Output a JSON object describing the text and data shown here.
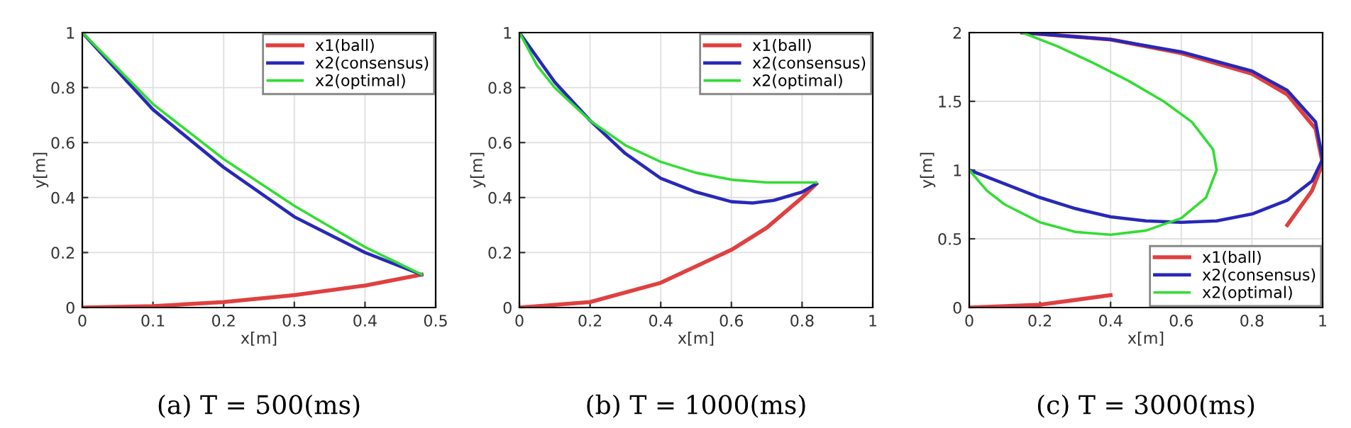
{
  "chart_data": [
    {
      "type": "line",
      "title": "(a) T = 500(ms)",
      "xlabel": "x[m]",
      "ylabel": "y[m]",
      "xlim": [
        0,
        0.5
      ],
      "ylim": [
        0,
        1
      ],
      "xticks": [
        0,
        0.1,
        0.2,
        0.3,
        0.4,
        0.5
      ],
      "yticks": [
        0,
        0.2,
        0.4,
        0.6,
        0.8,
        1
      ],
      "grid": true,
      "legend": "top right",
      "line_style": "solid",
      "series": [
        {
          "name": "x1(ball)",
          "color": "#e04040",
          "x": [
            0,
            0.1,
            0.2,
            0.3,
            0.4,
            0.48
          ],
          "values": [
            0,
            0.005,
            0.02,
            0.045,
            0.08,
            0.12
          ]
        },
        {
          "name": "x2(consensus)",
          "color": "#2828b8",
          "x": [
            0,
            0.1,
            0.2,
            0.3,
            0.4,
            0.48
          ],
          "values": [
            1,
            0.72,
            0.51,
            0.33,
            0.2,
            0.12
          ]
        },
        {
          "name": "x2(optimal)",
          "color": "#33dd33",
          "x": [
            0,
            0.1,
            0.2,
            0.3,
            0.4,
            0.48
          ],
          "values": [
            1,
            0.74,
            0.54,
            0.37,
            0.22,
            0.12
          ]
        }
      ]
    },
    {
      "type": "line",
      "title": "(b) T = 1000(ms)",
      "xlabel": "x[m]",
      "ylabel": "y[m]",
      "xlim": [
        0,
        1
      ],
      "ylim": [
        0,
        1
      ],
      "xticks": [
        0,
        0.2,
        0.4,
        0.6,
        0.8,
        1
      ],
      "yticks": [
        0,
        0.2,
        0.4,
        0.6,
        0.8,
        1
      ],
      "grid": true,
      "legend": "top right",
      "line_style": "solid",
      "series": [
        {
          "name": "x1(ball)",
          "color": "#e04040",
          "x": [
            0,
            0.2,
            0.4,
            0.6,
            0.7,
            0.8,
            0.84
          ],
          "values": [
            0,
            0.02,
            0.09,
            0.21,
            0.29,
            0.4,
            0.45
          ]
        },
        {
          "name": "x2(consensus)",
          "color": "#2828b8",
          "x": [
            0,
            0.1,
            0.2,
            0.3,
            0.4,
            0.5,
            0.6,
            0.66,
            0.72,
            0.8,
            0.84
          ],
          "values": [
            1,
            0.82,
            0.68,
            0.56,
            0.47,
            0.42,
            0.385,
            0.38,
            0.39,
            0.42,
            0.45
          ]
        },
        {
          "name": "x2(optimal)",
          "color": "#33dd33",
          "x": [
            0,
            0.05,
            0.1,
            0.2,
            0.3,
            0.4,
            0.5,
            0.6,
            0.7,
            0.84
          ],
          "values": [
            1,
            0.88,
            0.8,
            0.68,
            0.59,
            0.53,
            0.49,
            0.465,
            0.455,
            0.455
          ]
        }
      ]
    },
    {
      "type": "line",
      "title": "(c) T = 3000(ms)",
      "xlabel": "x[m]",
      "ylabel": "y[m]",
      "xlim": [
        0,
        1
      ],
      "ylim": [
        0,
        2
      ],
      "xticks": [
        0,
        0.2,
        0.4,
        0.6,
        0.8,
        1
      ],
      "yticks": [
        0,
        0.5,
        1,
        1.5,
        2
      ],
      "grid": true,
      "legend": "bottom right",
      "line_style": "solid",
      "series": [
        {
          "name": "x1(ball)",
          "color": "#e04040",
          "x": [
            0,
            0.2,
            0.4,
            0.6,
            0.8,
            0.9,
            0.97,
            1.0,
            0.98,
            0.9,
            0.8,
            0.6,
            0.4,
            0.15
          ],
          "values": [
            0,
            0.02,
            0.09,
            null,
            null,
            0.6,
            0.85,
            1.05,
            1.3,
            1.55,
            1.7,
            1.85,
            1.95,
            2.0
          ]
        },
        {
          "name": "x2(consensus)",
          "color": "#2828b8",
          "x": [
            0,
            0.1,
            0.2,
            0.3,
            0.4,
            0.5,
            0.6,
            0.7,
            0.8,
            0.9,
            0.97,
            1.0,
            0.98,
            0.9,
            0.8,
            0.6,
            0.4,
            0.15
          ],
          "values": [
            1,
            0.9,
            0.8,
            0.72,
            0.66,
            0.63,
            0.62,
            0.63,
            0.68,
            0.78,
            0.92,
            1.08,
            1.35,
            1.58,
            1.72,
            1.86,
            1.95,
            2.0
          ]
        },
        {
          "name": "x2(optimal)",
          "color": "#33dd33",
          "x": [
            0,
            0.05,
            0.1,
            0.2,
            0.3,
            0.4,
            0.5,
            0.6,
            0.67,
            0.7,
            0.69,
            0.63,
            0.55,
            0.45,
            0.35,
            0.25,
            0.15
          ],
          "values": [
            1,
            0.85,
            0.75,
            0.62,
            0.55,
            0.53,
            0.56,
            0.65,
            0.8,
            1.0,
            1.15,
            1.35,
            1.5,
            1.65,
            1.78,
            1.9,
            2.0
          ]
        }
      ]
    }
  ]
}
